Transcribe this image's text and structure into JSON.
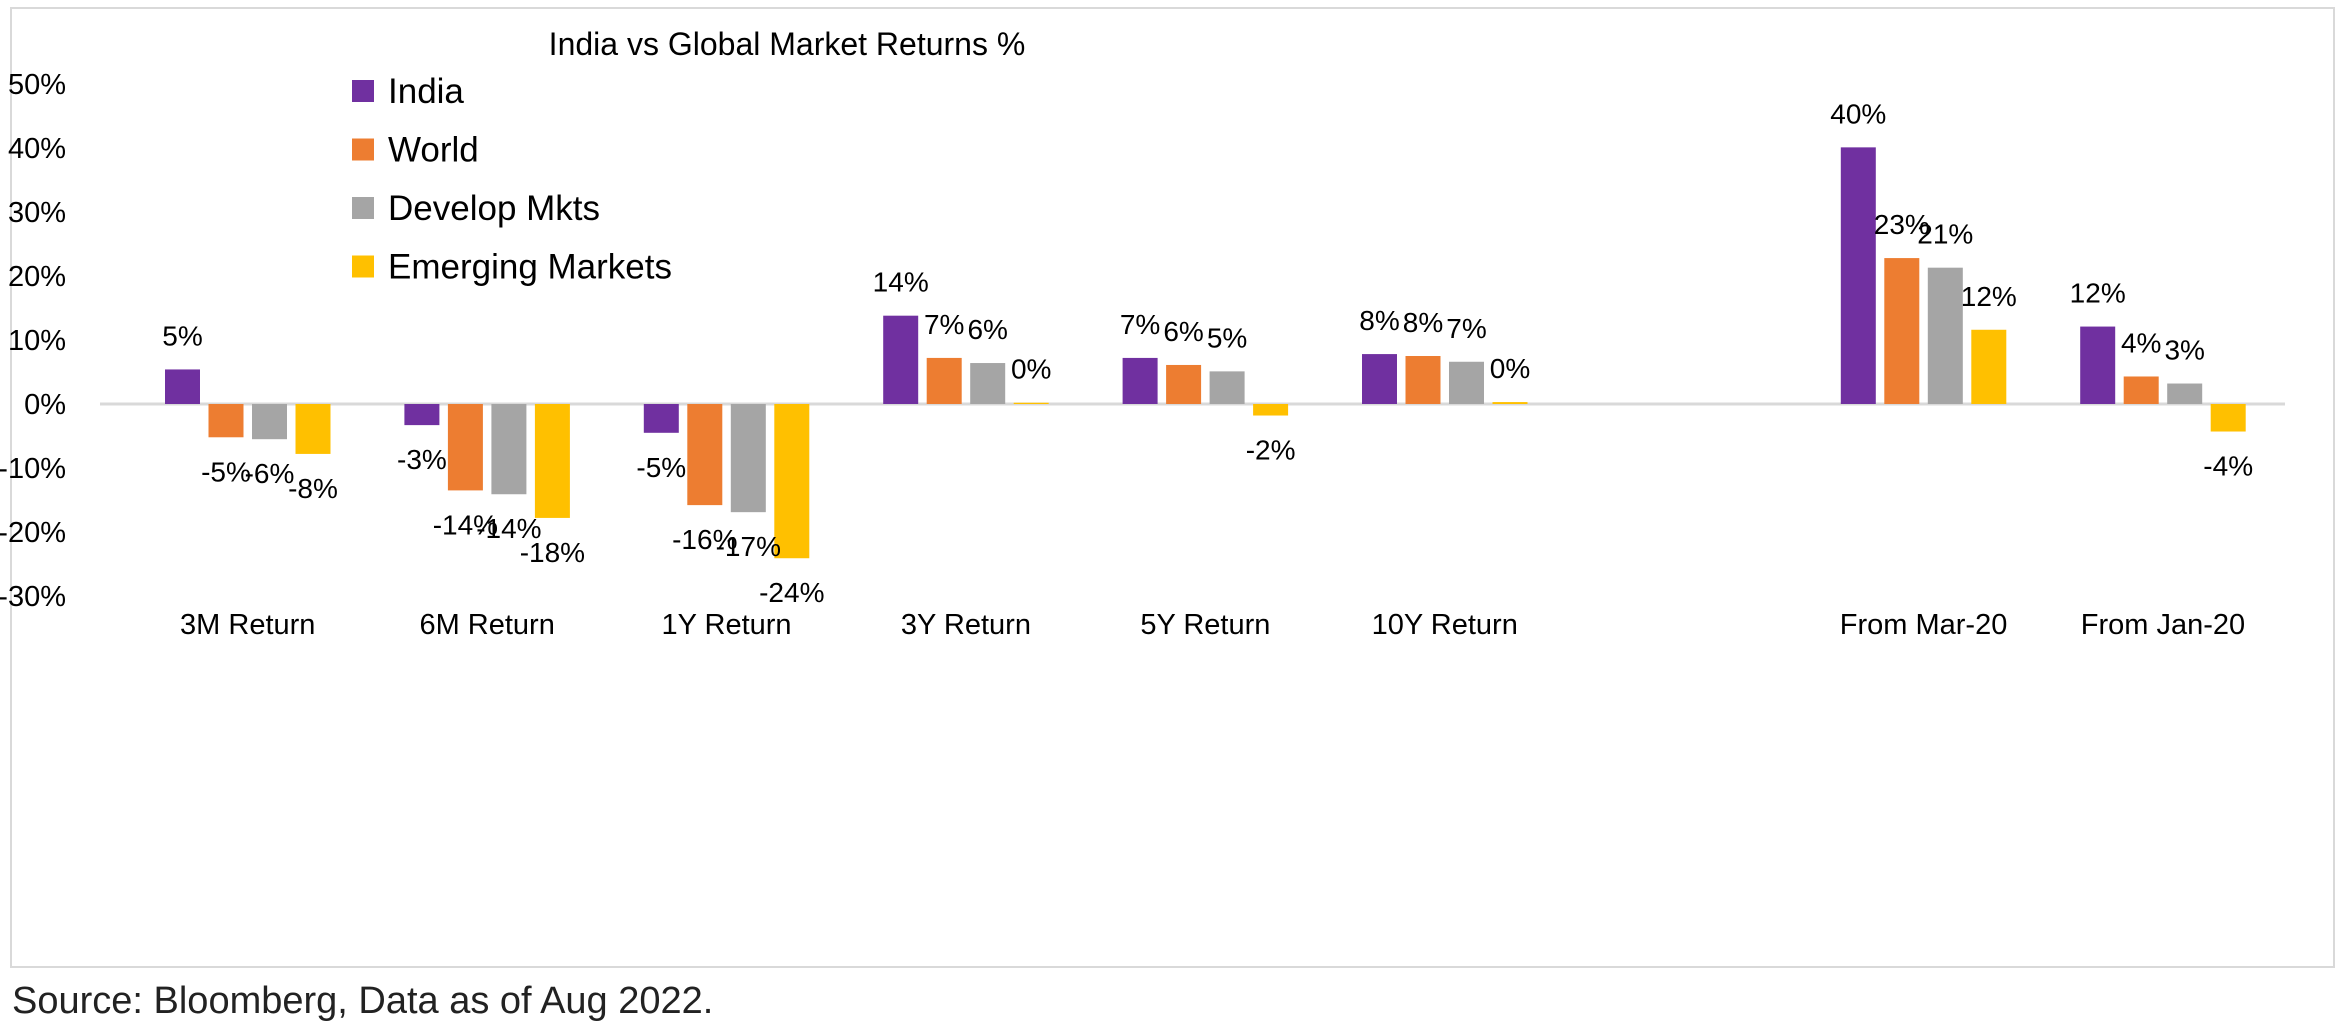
{
  "chart_data": {
    "type": "bar",
    "title": "India vs Global Market Returns %",
    "xlabel": "",
    "ylabel": "",
    "ylim": [
      -30,
      50
    ],
    "yticks": [
      {
        "value": 50,
        "label": "50%"
      },
      {
        "value": 40,
        "label": "40%"
      },
      {
        "value": 30,
        "label": "30%"
      },
      {
        "value": 20,
        "label": "20%"
      },
      {
        "value": 10,
        "label": "10%"
      },
      {
        "value": 0,
        "label": "0%"
      },
      {
        "value": -10,
        "label": "-10%"
      },
      {
        "value": -20,
        "label": "-20%"
      },
      {
        "value": -30,
        "label": "-30%"
      }
    ],
    "grid": false,
    "legend_position": "top-left",
    "categories": [
      "3M Return",
      "6M Return",
      "1Y Return",
      "3Y Return",
      "5Y Return",
      "10Y Return",
      "",
      "From Mar-20",
      "From Jan-20"
    ],
    "series": [
      {
        "name": "India",
        "color": "#7030A0",
        "values": [
          5.4,
          -3.3,
          -4.5,
          13.8,
          7.2,
          7.8,
          null,
          40.1,
          12.1
        ],
        "labels": [
          "5%",
          "-3%",
          "-5%",
          "14%",
          "7%",
          "8%",
          "",
          "40%",
          "12%"
        ]
      },
      {
        "name": "World",
        "color": "#ED7D31",
        "values": [
          -5.2,
          -13.5,
          -15.8,
          7.2,
          6.1,
          7.5,
          null,
          22.8,
          4.3
        ],
        "labels": [
          "-5%",
          "-14%",
          "-16%",
          "7%",
          "6%",
          "8%",
          "",
          "23%",
          "4%"
        ]
      },
      {
        "name": "Develop Mkts",
        "color": "#A5A5A5",
        "values": [
          -5.5,
          -14.1,
          -16.9,
          6.4,
          5.1,
          6.6,
          null,
          21.3,
          3.2
        ],
        "labels": [
          "-6%",
          "-14%",
          "-17%",
          "6%",
          "5%",
          "7%",
          "",
          "21%",
          "3%"
        ]
      },
      {
        "name": "Emerging Markets",
        "color": "#FFC000",
        "values": [
          -7.8,
          -17.8,
          -24.1,
          0.2,
          -1.8,
          0.3,
          null,
          11.6,
          -4.3
        ],
        "labels": [
          "-8%",
          "-18%",
          "-24%",
          "0%",
          "-2%",
          "0%",
          "",
          "12%",
          "-4%"
        ]
      }
    ]
  },
  "footer": {
    "source": "Source: Bloomberg, Data as of Aug 2022."
  }
}
